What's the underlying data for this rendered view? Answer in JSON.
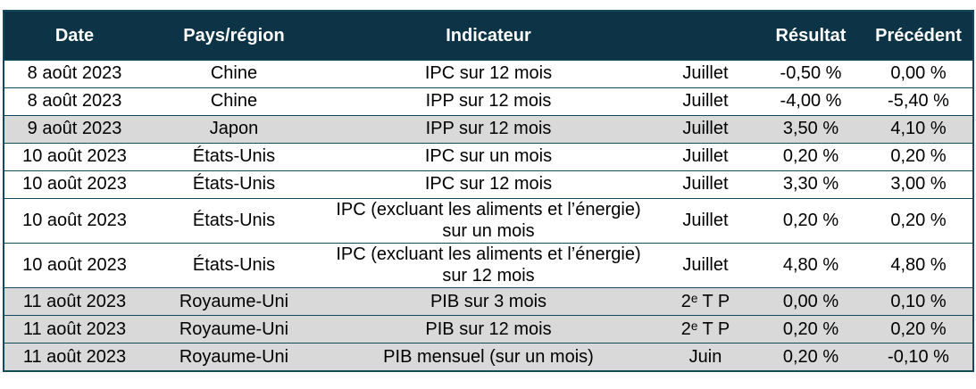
{
  "colors": {
    "header_bg": "#0d3446",
    "header_text": "#ffffff",
    "row_bg": "#ffffff",
    "row_shaded_bg": "#d9d9d9",
    "border": "#16485c",
    "text": "#000000"
  },
  "table": {
    "headers": [
      "Date",
      "Pays/région",
      "Indicateur",
      "",
      "Résultat",
      "Précédent"
    ],
    "rows": [
      {
        "date": "8 août 2023",
        "region": "Chine",
        "indicator": "IPC sur 12 mois",
        "period": "Juillet",
        "result": "-0,50 %",
        "previous": "0,00 %",
        "shaded": false
      },
      {
        "date": "8 août 2023",
        "region": "Chine",
        "indicator": "IPP sur 12 mois",
        "period": "Juillet",
        "result": "-4,00 %",
        "previous": "-5,40 %",
        "shaded": false
      },
      {
        "date": "9 août 2023",
        "region": "Japon",
        "indicator": "IPP sur 12 mois",
        "period": "Juillet",
        "result": "3,50 %",
        "previous": "4,10 %",
        "shaded": true
      },
      {
        "date": "10 août 2023",
        "region": "États-Unis",
        "indicator": "IPC sur un mois",
        "period": "Juillet",
        "result": "0,20 %",
        "previous": "0,20 %",
        "shaded": false
      },
      {
        "date": "10 août 2023",
        "region": "États-Unis",
        "indicator": "IPC sur 12 mois",
        "period": "Juillet",
        "result": "3,30 %",
        "previous": "3,00 %",
        "shaded": false
      },
      {
        "date": "10 août 2023",
        "region": "États-Unis",
        "indicator": "IPC (excluant les aliments et l’énergie) sur un mois",
        "period": "Juillet",
        "result": "0,20 %",
        "previous": "0,20 %",
        "shaded": false
      },
      {
        "date": "10 août 2023",
        "region": "États-Unis",
        "indicator": "IPC (excluant les aliments et l’énergie) sur 12 mois",
        "period": "Juillet",
        "result": "4,80 %",
        "previous": "4,80 %",
        "shaded": false
      },
      {
        "date": "11 août 2023",
        "region": "Royaume-Uni",
        "indicator": "PIB sur 3 mois",
        "period": "2ᵉ T P",
        "result": "0,00 %",
        "previous": "0,10 %",
        "shaded": true
      },
      {
        "date": "11 août 2023",
        "region": "Royaume-Uni",
        "indicator": "PIB sur 12 mois",
        "period": "2ᵉ T P",
        "result": "0,20 %",
        "previous": "0,20 %",
        "shaded": true
      },
      {
        "date": "11 août 2023",
        "region": "Royaume-Uni",
        "indicator": "PIB mensuel (sur un mois)",
        "period": "Juin",
        "result": "0,20 %",
        "previous": "-0,10 %",
        "shaded": true
      }
    ]
  }
}
